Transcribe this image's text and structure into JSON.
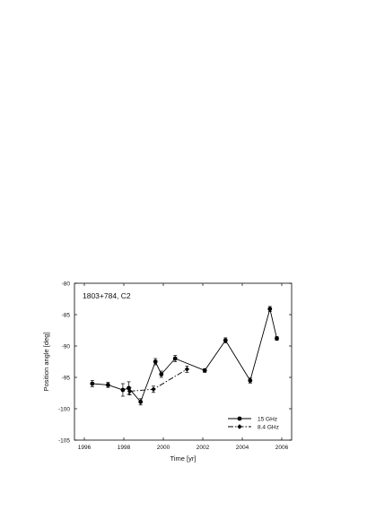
{
  "chart_data": {
    "type": "line",
    "title": "",
    "annotation": "1803+784, C2",
    "xlabel": "Time [yr]",
    "ylabel": "Position angle [deg]",
    "xlim": [
      1995.5,
      2006.5
    ],
    "ylim": [
      -105,
      -80
    ],
    "x_ticks": [
      1996,
      1998,
      2000,
      2002,
      2004,
      2006
    ],
    "y_ticks": [
      -80,
      -85,
      -90,
      -95,
      -100,
      -105
    ],
    "x_tick_labels": [
      "1996",
      "1998",
      "2000",
      "2002",
      "2004",
      "2006"
    ],
    "y_tick_labels": [
      "-80",
      "-85",
      "-90",
      "-95",
      "-100",
      "-105"
    ],
    "grid": false,
    "legend_position": "bottom-right",
    "series": [
      {
        "name": "15 GHz",
        "line_style": "solid",
        "marker": "circle",
        "points": [
          {
            "x": 1996.4,
            "y": -96.0,
            "err": 0.5
          },
          {
            "x": 1997.2,
            "y": -96.2,
            "err": 0.4
          },
          {
            "x": 1997.95,
            "y": -97.0,
            "err": 1.0
          },
          {
            "x": 1998.25,
            "y": -96.7,
            "err": 1.0
          },
          {
            "x": 1998.85,
            "y": -98.9,
            "err": 0.5
          },
          {
            "x": 1999.6,
            "y": -92.5,
            "err": 0.5
          },
          {
            "x": 1999.9,
            "y": -94.5,
            "err": 0.5
          },
          {
            "x": 2000.6,
            "y": -92.0,
            "err": 0.5
          },
          {
            "x": 2002.1,
            "y": -93.9,
            "err": 0.3
          },
          {
            "x": 2003.15,
            "y": -89.1,
            "err": 0.4
          },
          {
            "x": 2004.4,
            "y": -95.5,
            "err": 0.4
          },
          {
            "x": 2005.4,
            "y": -84.1,
            "err": 0.4
          },
          {
            "x": 2005.75,
            "y": -88.8,
            "err": 0.3
          }
        ]
      },
      {
        "name": "8.4 GHz",
        "line_style": "dashdot",
        "marker": "diamond",
        "points": [
          {
            "x": 1998.3,
            "y": -97.2,
            "err": 0.6
          },
          {
            "x": 1999.5,
            "y": -96.9,
            "err": 0.5
          },
          {
            "x": 2001.2,
            "y": -93.7,
            "err": 0.5
          }
        ]
      }
    ]
  }
}
